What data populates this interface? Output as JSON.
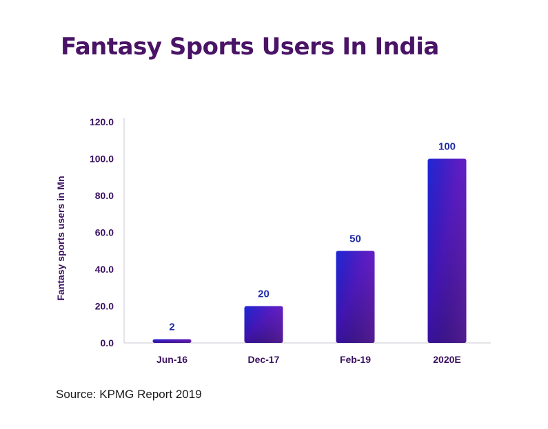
{
  "chart_data": {
    "type": "bar",
    "title": "Fantasy Sports Users In India",
    "ylabel": "Fantasy sports users in Mn",
    "xlabel": "",
    "categories": [
      "Jun-16",
      "Dec-17",
      "Feb-19",
      "2020E"
    ],
    "values": [
      2,
      20,
      50,
      100
    ],
    "value_labels": [
      "2",
      "20",
      "50",
      "100"
    ],
    "ylim": [
      0,
      120
    ],
    "yticks": [
      "0.0",
      "20.0",
      "40.0",
      "60.0",
      "80.0",
      "100.0",
      "120.0"
    ],
    "grid": false,
    "legend": "none",
    "source": "Source: KPMG Report 2019"
  },
  "colors": {
    "title": "#4a1466",
    "axis_text": "#3a1060",
    "value_label": "#1e2aa6",
    "bar_top_left": "#1d28d6",
    "bar_top_right": "#8a2be2",
    "bar_bottom_left": "#0e0a2e",
    "bar_bottom_right": "#5a1a8c",
    "axis_line": "#c8c8d0"
  }
}
